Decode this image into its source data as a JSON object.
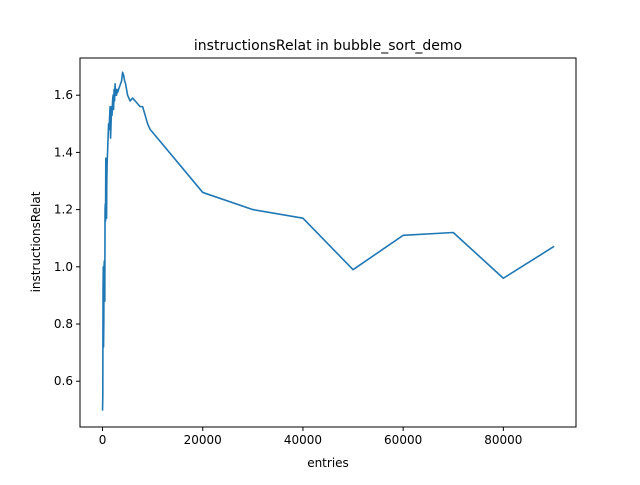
{
  "chart_data": {
    "type": "line",
    "title": "instructionsRelat in bubble_sort_demo",
    "xlabel": "entries",
    "ylabel": "instructionsRelat",
    "xlim": [
      -4500,
      94500
    ],
    "ylim": [
      0.44,
      1.73
    ],
    "x_ticks": [
      0,
      20000,
      40000,
      60000,
      80000
    ],
    "x_tick_labels": [
      "0",
      "20000",
      "40000",
      "60000",
      "80000"
    ],
    "y_ticks": [
      0.6,
      0.8,
      1.0,
      1.2,
      1.4,
      1.6
    ],
    "y_tick_labels": [
      "0.6",
      "0.8",
      "1.0",
      "1.2",
      "1.4",
      "1.6"
    ],
    "grid": false,
    "legend": "none",
    "series": [
      {
        "color": "#1f77b4",
        "x": [
          0,
          50,
          100,
          150,
          200,
          250,
          300,
          350,
          400,
          450,
          500,
          550,
          600,
          650,
          700,
          750,
          800,
          850,
          900,
          950,
          1000,
          1100,
          1200,
          1300,
          1400,
          1500,
          1600,
          1700,
          1800,
          1900,
          2000,
          2100,
          2200,
          2300,
          2400,
          2500,
          2600,
          2700,
          2800,
          2900,
          3000,
          3200,
          3400,
          3600,
          3800,
          4000,
          4200,
          4400,
          4600,
          4800,
          5000,
          5500,
          6000,
          6500,
          7000,
          7500,
          8000,
          8500,
          9000,
          9500,
          10000,
          20000,
          30000,
          40000,
          50000,
          60000,
          70000,
          80000,
          90000
        ],
        "y": [
          0.5,
          0.55,
          0.92,
          1.0,
          0.72,
          0.8,
          1.0,
          1.02,
          0.95,
          0.88,
          1.2,
          1.22,
          1.16,
          1.38,
          1.2,
          1.25,
          1.17,
          1.3,
          1.35,
          1.38,
          1.4,
          1.45,
          1.5,
          1.48,
          1.52,
          1.56,
          1.45,
          1.5,
          1.56,
          1.53,
          1.58,
          1.6,
          1.55,
          1.62,
          1.58,
          1.64,
          1.6,
          1.62,
          1.6,
          1.62,
          1.61,
          1.62,
          1.63,
          1.64,
          1.65,
          1.68,
          1.67,
          1.65,
          1.64,
          1.62,
          1.6,
          1.58,
          1.59,
          1.58,
          1.57,
          1.56,
          1.56,
          1.53,
          1.5,
          1.48,
          1.47,
          1.26,
          1.2,
          1.17,
          0.99,
          1.11,
          1.12,
          0.96,
          1.07
        ]
      }
    ]
  }
}
